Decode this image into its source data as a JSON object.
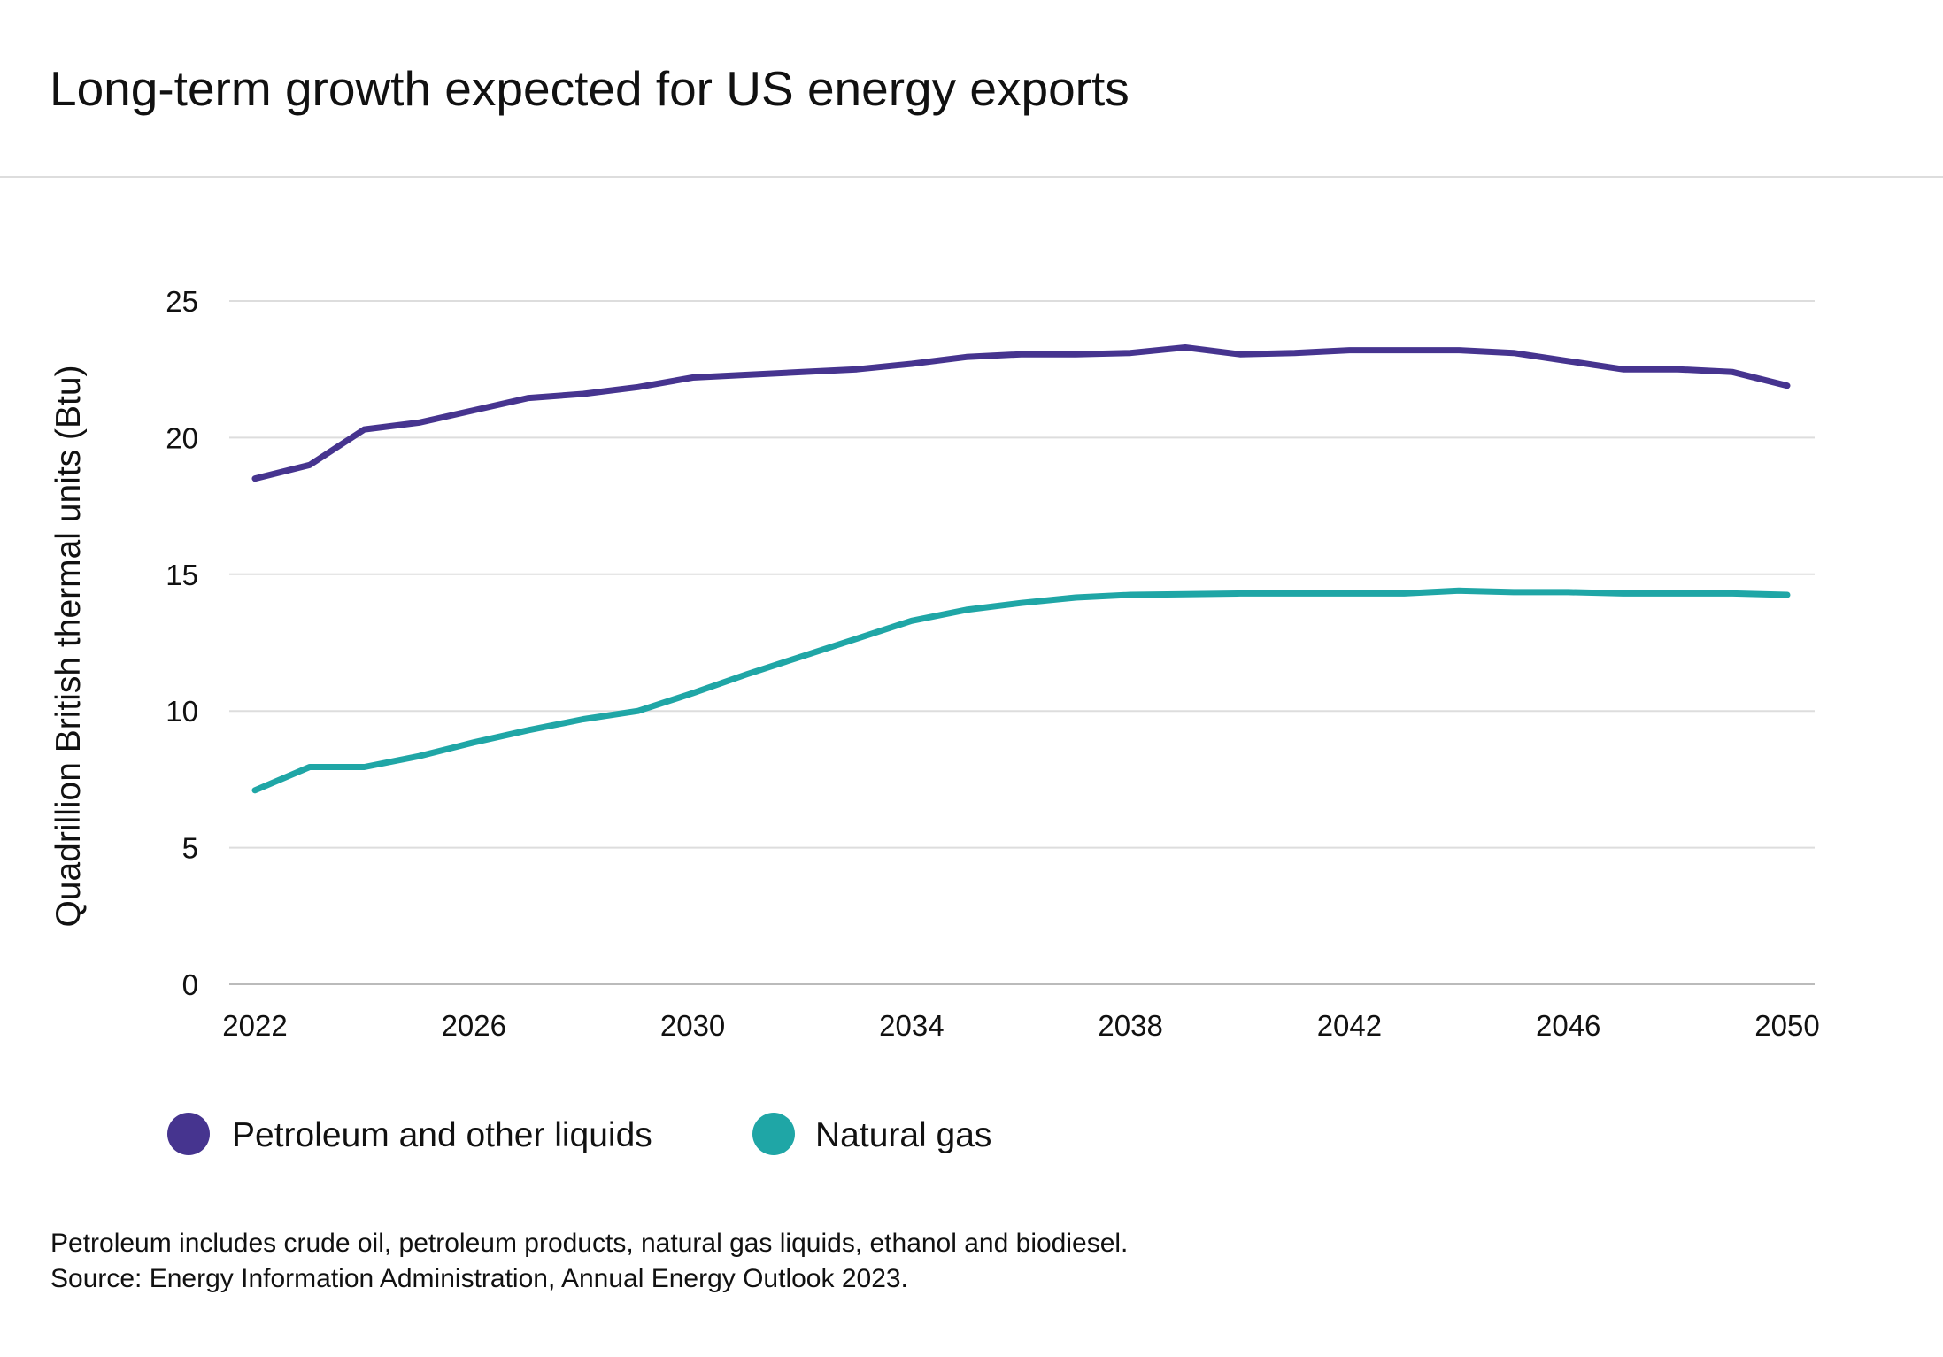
{
  "title": "Long-term growth expected for US energy exports",
  "notes": [
    "Petroleum includes crude oil, petroleum products, natural gas liquids, ethanol and biodiesel.",
    "Source: Energy Information Administration, Annual Energy Outlook 2023."
  ],
  "chart_data": {
    "type": "line",
    "title": "Long-term growth expected for US energy exports",
    "xlabel": "",
    "ylabel": "Quadrillion British thermal units (Btu)",
    "xlim": [
      2022,
      2050
    ],
    "ylim": [
      0,
      25
    ],
    "xticks": [
      2022,
      2026,
      2030,
      2034,
      2038,
      2042,
      2046,
      2050
    ],
    "yticks": [
      0,
      5,
      10,
      15,
      20,
      25
    ],
    "grid": "horizontal",
    "legend": "bottom-left",
    "x": [
      2022,
      2023,
      2024,
      2025,
      2026,
      2027,
      2028,
      2029,
      2030,
      2031,
      2032,
      2033,
      2034,
      2035,
      2036,
      2037,
      2038,
      2039,
      2040,
      2041,
      2042,
      2043,
      2044,
      2045,
      2046,
      2047,
      2048,
      2049,
      2050
    ],
    "series": [
      {
        "name": "Petroleum and other liquids",
        "color": "#46348f",
        "values": [
          18.5,
          19.0,
          20.3,
          20.55,
          21.0,
          21.45,
          21.6,
          21.85,
          22.2,
          22.3,
          22.4,
          22.5,
          22.7,
          22.95,
          23.05,
          23.05,
          23.1,
          23.3,
          23.05,
          23.1,
          23.2,
          23.2,
          23.2,
          23.1,
          22.8,
          22.5,
          22.5,
          22.4,
          21.9
        ]
      },
      {
        "name": "Natural gas",
        "color": "#1fa6a6",
        "values": [
          7.1,
          7.95,
          7.95,
          8.35,
          8.85,
          9.3,
          9.7,
          10.0,
          10.65,
          11.35,
          12.0,
          12.65,
          13.3,
          13.7,
          13.95,
          14.15,
          14.25,
          14.27,
          14.3,
          14.3,
          14.3,
          14.3,
          14.4,
          14.35,
          14.35,
          14.3,
          14.3,
          14.3,
          14.25
        ]
      }
    ]
  }
}
